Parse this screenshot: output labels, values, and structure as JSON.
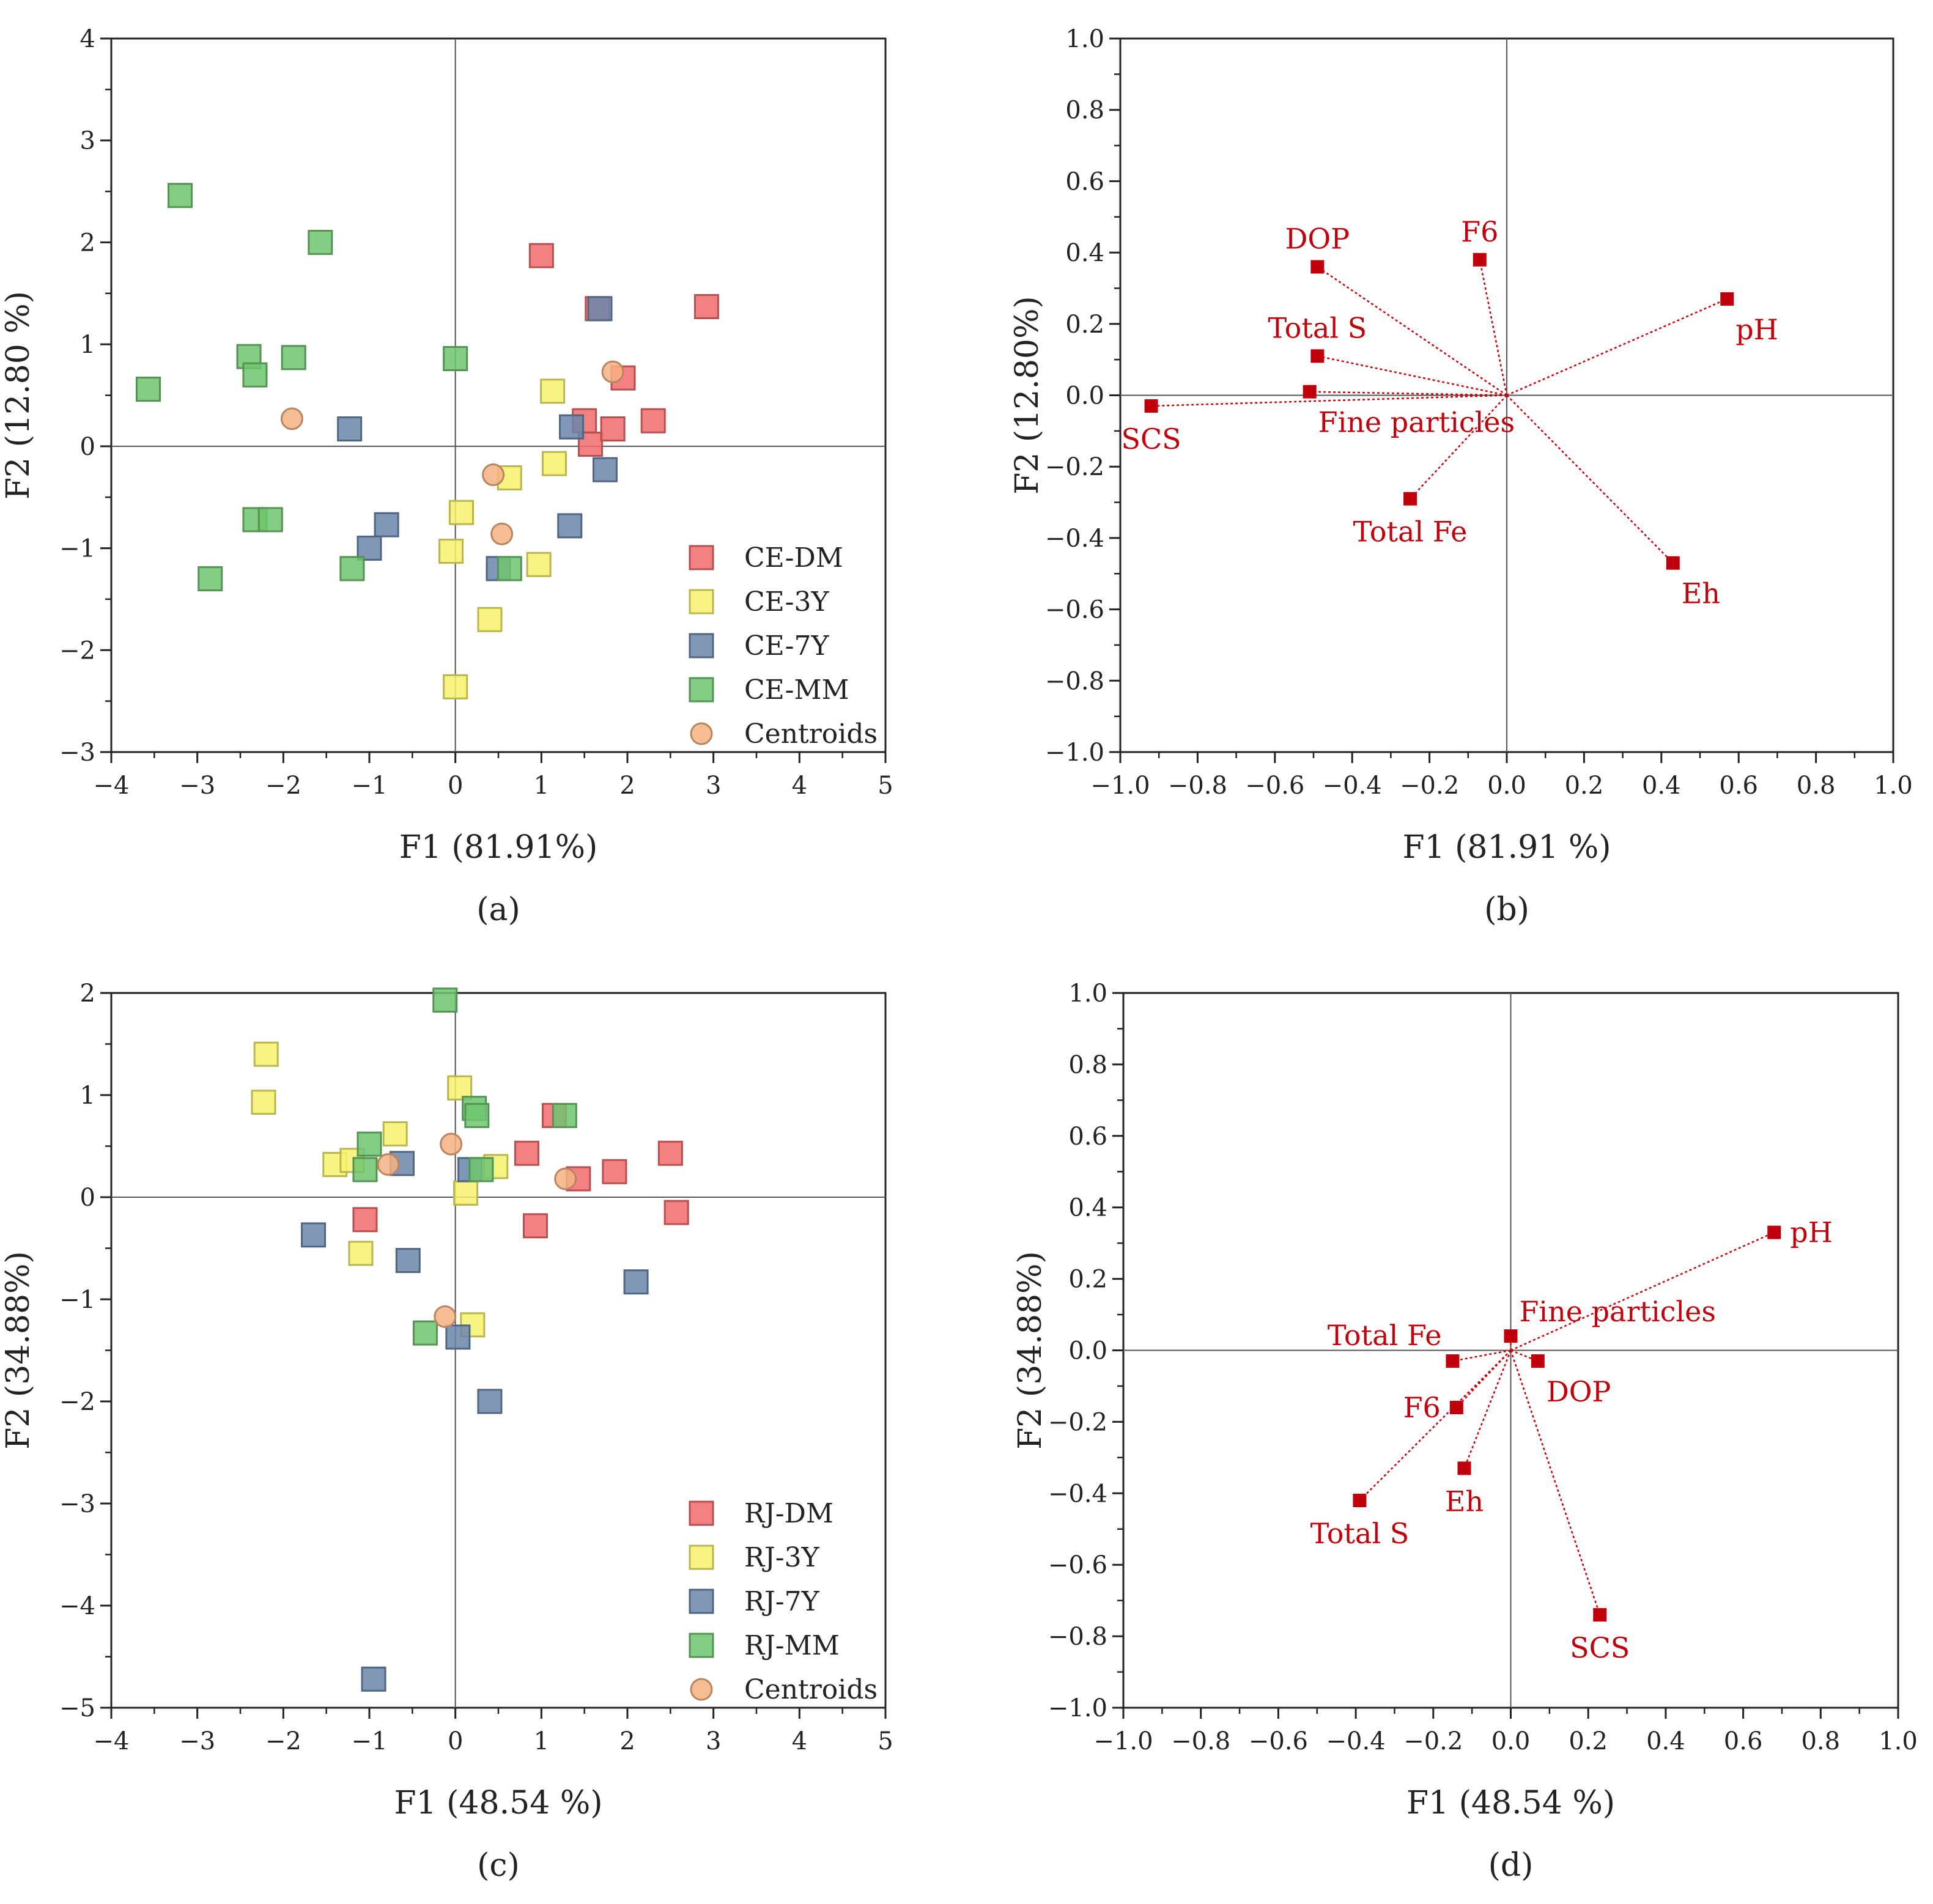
{
  "chart_data": [
    {
      "type": "scatter",
      "panel_label": "(a)",
      "xlabel": "F1 (81.91%)",
      "ylabel": "F2 (12.80 %)",
      "xlim": [
        -4,
        5
      ],
      "ylim": [
        -3,
        4
      ],
      "xticks": [
        -4,
        -3,
        -2,
        -1,
        0,
        1,
        2,
        3,
        4,
        5
      ],
      "yticks": [
        -3,
        -2,
        -1,
        0,
        1,
        2,
        3,
        4
      ],
      "legend_position": "bottom-right",
      "series": [
        {
          "name": "CE-DM",
          "color": "#f26b6b",
          "marker": "square",
          "points": [
            [
              1.0,
              1.87
            ],
            [
              1.65,
              1.35
            ],
            [
              2.92,
              1.37
            ],
            [
              1.95,
              0.67
            ],
            [
              1.5,
              0.25
            ],
            [
              1.57,
              0.02
            ],
            [
              1.83,
              0.17
            ],
            [
              2.3,
              0.25
            ]
          ]
        },
        {
          "name": "CE-3Y",
          "color": "#f7f26b",
          "marker": "square",
          "points": [
            [
              1.13,
              0.54
            ],
            [
              1.15,
              -0.17
            ],
            [
              0.63,
              -0.31
            ],
            [
              0.07,
              -0.65
            ],
            [
              -0.05,
              -1.03
            ],
            [
              0.97,
              -1.16
            ],
            [
              0.4,
              -1.7
            ],
            [
              0.0,
              -2.36
            ]
          ]
        },
        {
          "name": "CE-7Y",
          "color": "#6a86ac",
          "marker": "square",
          "points": [
            [
              1.68,
              1.35
            ],
            [
              -1.23,
              0.17
            ],
            [
              1.35,
              0.19
            ],
            [
              1.74,
              -0.23
            ],
            [
              -0.8,
              -0.77
            ],
            [
              -1.0,
              -1.0
            ],
            [
              1.33,
              -0.78
            ],
            [
              0.5,
              -1.2
            ]
          ]
        },
        {
          "name": "CE-MM",
          "color": "#6ec46e",
          "marker": "square",
          "points": [
            [
              -3.2,
              2.46
            ],
            [
              -1.57,
              2.0
            ],
            [
              -2.4,
              0.88
            ],
            [
              -1.88,
              0.87
            ],
            [
              -2.33,
              0.7
            ],
            [
              -3.57,
              0.56
            ],
            [
              0.0,
              0.86
            ],
            [
              -2.33,
              -0.72
            ],
            [
              -2.15,
              -0.72
            ],
            [
              -1.2,
              -1.2
            ],
            [
              0.63,
              -1.2
            ],
            [
              -2.85,
              -1.3
            ]
          ]
        },
        {
          "name": "Centroids",
          "color": "#f4b183",
          "marker": "circle",
          "points": [
            [
              1.83,
              0.73
            ],
            [
              -1.9,
              0.27
            ],
            [
              0.44,
              -0.28
            ],
            [
              0.54,
              -0.86
            ]
          ]
        }
      ]
    },
    {
      "type": "loadings",
      "panel_label": "(b)",
      "xlabel": "F1 (81.91 %)",
      "ylabel": "F2 (12.80%)",
      "xlim": [
        -1.0,
        1.0
      ],
      "ylim": [
        -1.0,
        1.0
      ],
      "xticks": [
        -1.0,
        -0.8,
        -0.6,
        -0.4,
        -0.2,
        0.0,
        0.2,
        0.4,
        0.6,
        0.8,
        1.0
      ],
      "yticks": [
        -1.0,
        -0.8,
        -0.6,
        -0.4,
        -0.2,
        0.0,
        0.2,
        0.4,
        0.6,
        0.8,
        1.0
      ],
      "color": "#c0000a",
      "variables": [
        {
          "name": "DOP",
          "x": -0.49,
          "y": 0.36,
          "label_position": "above"
        },
        {
          "name": "F6",
          "x": -0.07,
          "y": 0.38,
          "label_position": "above"
        },
        {
          "name": "pH",
          "x": 0.57,
          "y": 0.27,
          "label_position": "below-right"
        },
        {
          "name": "Total S",
          "x": -0.49,
          "y": 0.11,
          "label_position": "above"
        },
        {
          "name": "Fine particles",
          "x": -0.51,
          "y": 0.01,
          "label_position": "below-right"
        },
        {
          "name": "SCS",
          "x": -0.92,
          "y": -0.03,
          "label_position": "below"
        },
        {
          "name": "Total Fe",
          "x": -0.25,
          "y": -0.29,
          "label_position": "below"
        },
        {
          "name": "Eh",
          "x": 0.43,
          "y": -0.47,
          "label_position": "below-right"
        }
      ]
    },
    {
      "type": "scatter",
      "panel_label": "(c)",
      "xlabel": "F1 (48.54 %)",
      "ylabel": "F2 (34.88%)",
      "xlim": [
        -4,
        5
      ],
      "ylim": [
        -5,
        2
      ],
      "xticks": [
        -4,
        -3,
        -2,
        -1,
        0,
        1,
        2,
        3,
        4,
        5
      ],
      "yticks": [
        -5,
        -4,
        -3,
        -2,
        -1,
        0,
        1,
        2
      ],
      "legend_position": "bottom-right",
      "series": [
        {
          "name": "RJ-DM",
          "color": "#f26b6b",
          "marker": "square",
          "points": [
            [
              1.15,
              0.8
            ],
            [
              0.83,
              0.43
            ],
            [
              2.5,
              0.43
            ],
            [
              1.43,
              0.18
            ],
            [
              1.85,
              0.25
            ],
            [
              -1.05,
              -0.22
            ],
            [
              0.93,
              -0.28
            ],
            [
              2.57,
              -0.15
            ]
          ]
        },
        {
          "name": "RJ-3Y",
          "color": "#f7f26b",
          "marker": "square",
          "points": [
            [
              -2.2,
              1.4
            ],
            [
              -2.23,
              0.93
            ],
            [
              0.05,
              1.07
            ],
            [
              -0.7,
              0.62
            ],
            [
              -1.4,
              0.32
            ],
            [
              -1.2,
              0.36
            ],
            [
              0.47,
              0.3
            ],
            [
              0.12,
              0.04
            ],
            [
              -1.1,
              -0.55
            ],
            [
              0.2,
              -1.25
            ]
          ]
        },
        {
          "name": "RJ-7Y",
          "color": "#6a86ac",
          "marker": "square",
          "points": [
            [
              -0.62,
              0.33
            ],
            [
              0.17,
              0.27
            ],
            [
              -1.65,
              -0.37
            ],
            [
              -0.55,
              -0.62
            ],
            [
              2.1,
              -0.83
            ],
            [
              0.03,
              -1.37
            ],
            [
              0.4,
              -2.0
            ],
            [
              -0.95,
              -4.72
            ]
          ]
        },
        {
          "name": "RJ-MM",
          "color": "#6ec46e",
          "marker": "square",
          "points": [
            [
              -0.12,
              1.93
            ],
            [
              0.22,
              0.87
            ],
            [
              0.25,
              0.8
            ],
            [
              1.27,
              0.8
            ],
            [
              -1.0,
              0.52
            ],
            [
              -1.05,
              0.27
            ],
            [
              0.3,
              0.27
            ],
            [
              -0.35,
              -1.33
            ]
          ]
        },
        {
          "name": "Centroids",
          "color": "#f4b183",
          "marker": "circle",
          "points": [
            [
              -0.05,
              0.52
            ],
            [
              -0.78,
              0.32
            ],
            [
              1.28,
              0.18
            ],
            [
              -0.12,
              -1.17
            ]
          ]
        }
      ]
    },
    {
      "type": "loadings",
      "panel_label": "(d)",
      "xlabel": "F1 (48.54 %)",
      "ylabel": "F2 (34.88%)",
      "xlim": [
        -1.0,
        1.0
      ],
      "ylim": [
        -1.0,
        1.0
      ],
      "xticks": [
        -1.0,
        -0.8,
        -0.6,
        -0.4,
        -0.2,
        0.0,
        0.2,
        0.4,
        0.6,
        0.8,
        1.0
      ],
      "yticks": [
        -1.0,
        -0.8,
        -0.6,
        -0.4,
        -0.2,
        0.0,
        0.2,
        0.4,
        0.6,
        0.8,
        1.0
      ],
      "color": "#c0000a",
      "variables": [
        {
          "name": "pH",
          "x": 0.68,
          "y": 0.33,
          "label_position": "right"
        },
        {
          "name": "Fine particles",
          "x": 0.0,
          "y": 0.04,
          "label_position": "above-right"
        },
        {
          "name": "Total Fe",
          "x": -0.15,
          "y": -0.03,
          "label_position": "above-left"
        },
        {
          "name": "DOP",
          "x": 0.07,
          "y": -0.03,
          "label_position": "below-right"
        },
        {
          "name": "F6",
          "x": -0.14,
          "y": -0.16,
          "label_position": "left"
        },
        {
          "name": "Eh",
          "x": -0.12,
          "y": -0.33,
          "label_position": "below"
        },
        {
          "name": "Total S",
          "x": -0.39,
          "y": -0.42,
          "label_position": "below"
        },
        {
          "name": "SCS",
          "x": 0.23,
          "y": -0.74,
          "label_position": "below"
        }
      ]
    }
  ]
}
